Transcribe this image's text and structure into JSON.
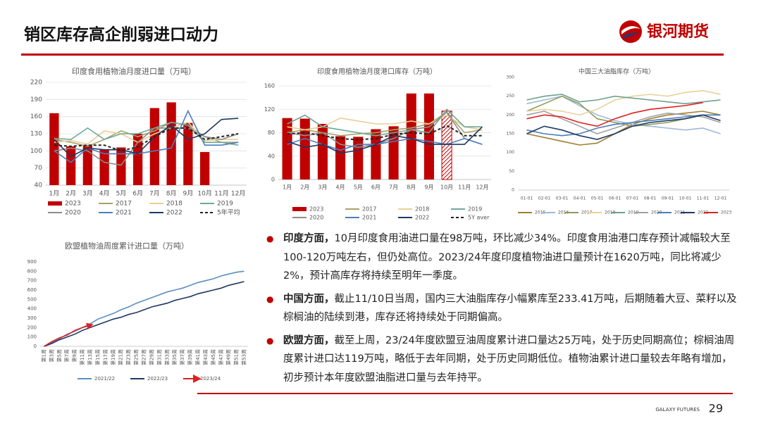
{
  "header": {
    "title": "销区库存高企削弱进口动力",
    "logo": "银河期货"
  },
  "chart_data": [
    {
      "type": "bar_line",
      "title": "印度食用植物油月度进口量（万吨）",
      "categories": [
        "1月",
        "2月",
        "3月",
        "4月",
        "5月",
        "6月",
        "7月",
        "8月",
        "9月",
        "10月",
        "11月",
        "12月"
      ],
      "ylim": [
        40,
        220
      ],
      "yticks": [
        40,
        70,
        100,
        130,
        160,
        190,
        220
      ],
      "grid": true,
      "series": [
        {
          "name": "2023",
          "type": "bar",
          "color": "#c00000",
          "values": [
            166,
            108,
            110,
            103,
            106,
            130,
            175,
            185,
            149,
            98,
            null,
            null
          ]
        },
        {
          "name": "2017",
          "type": "line",
          "color": "#a5a36a",
          "values": [
            120,
            115,
            108,
            120,
            135,
            125,
            135,
            150,
            145,
            125,
            115,
            115
          ]
        },
        {
          "name": "2018",
          "type": "line",
          "color": "#e8cf95",
          "values": [
            115,
            118,
            112,
            135,
            130,
            115,
            130,
            140,
            150,
            118,
            120,
            120
          ]
        },
        {
          "name": "2019",
          "type": "line",
          "color": "#6fa89a",
          "values": [
            122,
            120,
            140,
            120,
            130,
            130,
            140,
            150,
            145,
            115,
            115,
            110
          ]
        },
        {
          "name": "2020",
          "type": "line",
          "color": "#8c8c8c",
          "values": [
            100,
            105,
            100,
            80,
            75,
            115,
            140,
            140,
            140,
            125,
            120,
            130
          ]
        },
        {
          "name": "2021",
          "type": "line",
          "color": "#4a7ebb",
          "values": [
            100,
            80,
            105,
            95,
            95,
            95,
            100,
            105,
            170,
            110,
            110,
            115
          ]
        },
        {
          "name": "2022",
          "type": "line",
          "color": "#1f3864",
          "values": [
            120,
            90,
            105,
            102,
            102,
            95,
            125,
            145,
            120,
            130,
            155,
            157
          ]
        },
        {
          "name": "5年平均",
          "type": "line",
          "dash": true,
          "color": "#222222",
          "values": [
            110,
            108,
            110,
            110,
            100,
            107,
            125,
            140,
            140,
            120,
            125,
            130
          ]
        }
      ]
    },
    {
      "type": "bar_line",
      "title": "印度食用植物油月度港口库存（万吨）",
      "categories": [
        "1月",
        "2月",
        "3月",
        "4月",
        "5月",
        "6月",
        "7月",
        "8月",
        "9月",
        "10月",
        "11月",
        "12月"
      ],
      "ylim": [
        0,
        160
      ],
      "yticks": [
        0,
        40,
        80,
        120,
        160
      ],
      "grid": true,
      "series": [
        {
          "name": "2023",
          "type": "bar",
          "color": "#c00000",
          "hatched": [
            false,
            false,
            false,
            false,
            false,
            false,
            false,
            false,
            false,
            true,
            false,
            false
          ],
          "values": [
            105,
            104,
            95,
            74,
            73,
            86,
            91,
            147,
            147,
            117,
            null,
            null
          ]
        },
        {
          "name": "2017",
          "type": "line",
          "color": "#a5a36a",
          "values": [
            80,
            85,
            80,
            75,
            78,
            80,
            85,
            88,
            95,
            115,
            80,
            85
          ]
        },
        {
          "name": "2018",
          "type": "line",
          "color": "#e8cf95",
          "values": [
            90,
            85,
            90,
            105,
            100,
            95,
            95,
            100,
            95,
            110,
            90,
            85
          ]
        },
        {
          "name": "2019",
          "type": "line",
          "color": "#6fa89a",
          "values": [
            95,
            110,
            90,
            85,
            80,
            75,
            80,
            85,
            80,
            120,
            90,
            90
          ]
        },
        {
          "name": "2020",
          "type": "line",
          "color": "#8c8c8c",
          "values": [
            80,
            75,
            80,
            60,
            55,
            60,
            70,
            85,
            90,
            115,
            70,
            60
          ]
        },
        {
          "name": "2021",
          "type": "line",
          "color": "#4a7ebb",
          "values": [
            60,
            70,
            60,
            50,
            60,
            60,
            65,
            70,
            65,
            60,
            70,
            60
          ]
        },
        {
          "name": "2022",
          "type": "line",
          "color": "#1f3864",
          "values": [
            65,
            55,
            60,
            45,
            50,
            60,
            75,
            70,
            60,
            60,
            60,
            90
          ]
        },
        {
          "name": "5Y aver",
          "type": "line",
          "dash": true,
          "color": "#222222",
          "values": [
            78,
            80,
            75,
            70,
            68,
            70,
            77,
            80,
            78,
            92,
            75,
            75
          ]
        }
      ]
    },
    {
      "type": "line",
      "title": "中国三大油脂库存（万吨）",
      "categories": [
        "01-01",
        "02-01",
        "03-01",
        "04-01",
        "05-01",
        "06-01",
        "07-01",
        "08-01",
        "09-01",
        "10-01",
        "11-01",
        "12-01"
      ],
      "ylim": [
        0,
        300
      ],
      "yticks": [
        0,
        50,
        100,
        150,
        200,
        250,
        300
      ],
      "grid": false,
      "series": [
        {
          "name": "2015",
          "color": "#a08030",
          "values": [
            150,
            140,
            130,
            120,
            125,
            150,
            175,
            190,
            200,
            205,
            210,
            200
          ]
        },
        {
          "name": "2016",
          "color": "#9fb8d8",
          "values": [
            230,
            240,
            250,
            225,
            200,
            185,
            175,
            170,
            165,
            160,
            165,
            150
          ]
        },
        {
          "name": "2017",
          "color": "#8f9a5a",
          "values": [
            210,
            230,
            250,
            230,
            190,
            180,
            170,
            175,
            180,
            190,
            200,
            200
          ]
        },
        {
          "name": "2018",
          "color": "#e8d29a",
          "values": [
            210,
            215,
            210,
            200,
            215,
            240,
            250,
            255,
            250,
            260,
            265,
            255
          ]
        },
        {
          "name": "2019",
          "color": "#6fa08c",
          "values": [
            240,
            250,
            255,
            235,
            240,
            250,
            245,
            240,
            235,
            230,
            235,
            240
          ]
        },
        {
          "name": "2020",
          "color": "#a0a0a0",
          "values": [
            200,
            210,
            190,
            170,
            150,
            165,
            180,
            195,
            205,
            200,
            195,
            180
          ]
        },
        {
          "name": "2021",
          "color": "#4a7ebb",
          "values": [
            160,
            150,
            145,
            150,
            165,
            175,
            180,
            185,
            190,
            195,
            200,
            200
          ]
        },
        {
          "name": "2022",
          "color": "#1f3864",
          "values": [
            150,
            170,
            160,
            145,
            135,
            150,
            170,
            180,
            185,
            190,
            200,
            185
          ]
        },
        {
          "name": "2023",
          "color": "#e02020",
          "values": [
            190,
            200,
            195,
            180,
            170,
            190,
            205,
            215,
            220,
            225,
            233,
            null
          ]
        }
      ]
    },
    {
      "type": "line",
      "title": "欧盟植物油周度累计进口量（万吨）",
      "categories": [
        "第1周",
        "第3周",
        "第5周",
        "第7周",
        "第9周",
        "第11周",
        "第13周",
        "第15周",
        "第17周",
        "第19周",
        "第21周",
        "第23周",
        "第25周",
        "第27周",
        "第29周",
        "第31周",
        "第33周",
        "第35周",
        "第37周",
        "第39周",
        "第41周",
        "第43周",
        "第45周",
        "第47周",
        "第49周",
        "第51周",
        "第53周"
      ],
      "ylim": [
        0,
        900
      ],
      "yticks": [
        0,
        100,
        200,
        300,
        400,
        500,
        600,
        700,
        800,
        900
      ],
      "grid": false,
      "series": [
        {
          "name": "2021/22",
          "color": "#5a8fc0",
          "values": [
            0,
            40,
            80,
            130,
            160,
            200,
            240,
            290,
            320,
            350,
            390,
            420,
            460,
            490,
            520,
            550,
            580,
            600,
            620,
            650,
            680,
            700,
            720,
            750,
            770,
            790,
            800
          ]
        },
        {
          "name": "2022/23",
          "color": "#1f3864",
          "values": [
            0,
            30,
            70,
            100,
            130,
            170,
            200,
            230,
            260,
            290,
            310,
            340,
            360,
            390,
            420,
            440,
            460,
            490,
            510,
            530,
            560,
            580,
            600,
            620,
            650,
            670,
            690
          ]
        },
        {
          "name": "2023/24",
          "color": "#e02020",
          "arrow": true,
          "values": [
            0,
            50,
            90,
            120,
            170,
            200,
            225,
            null,
            null,
            null,
            null,
            null,
            null,
            null,
            null,
            null,
            null,
            null,
            null,
            null,
            null,
            null,
            null,
            null,
            null,
            null,
            null
          ]
        }
      ]
    }
  ],
  "bullets": [
    {
      "lead": "印度方面，",
      "text": "10月印度食用油进口量在98万吨，环比减少34%。印度食用油港口库存预计减幅较大至100-120万吨左右，但仍处高位。2023/24年度印度植物油进口量预计在1620万吨，同比将减少2%，预计高库存将持续至明年一季度。"
    },
    {
      "lead": "中国方面，",
      "text": "截止11/10日当周，国内三大油脂库存小幅累库至233.41万吨，后期随着大豆、菜籽以及棕榈油的陆续到港，库存还将持续处于同期偏高。"
    },
    {
      "lead": "欧盟方面，",
      "text": "截至上周，23/24年度欧盟豆油周度累计进口量达25万吨，处于历史同期高位；棕榈油周度累计进口达119万吨，略低于去年同期，处于历史同期低位。植物油累计进口量较去年略有增加，初步预计本年度欧盟油脂进口量与去年持平。"
    }
  ],
  "footer": {
    "brand": "GALAXY FUTURES",
    "page": "29"
  }
}
